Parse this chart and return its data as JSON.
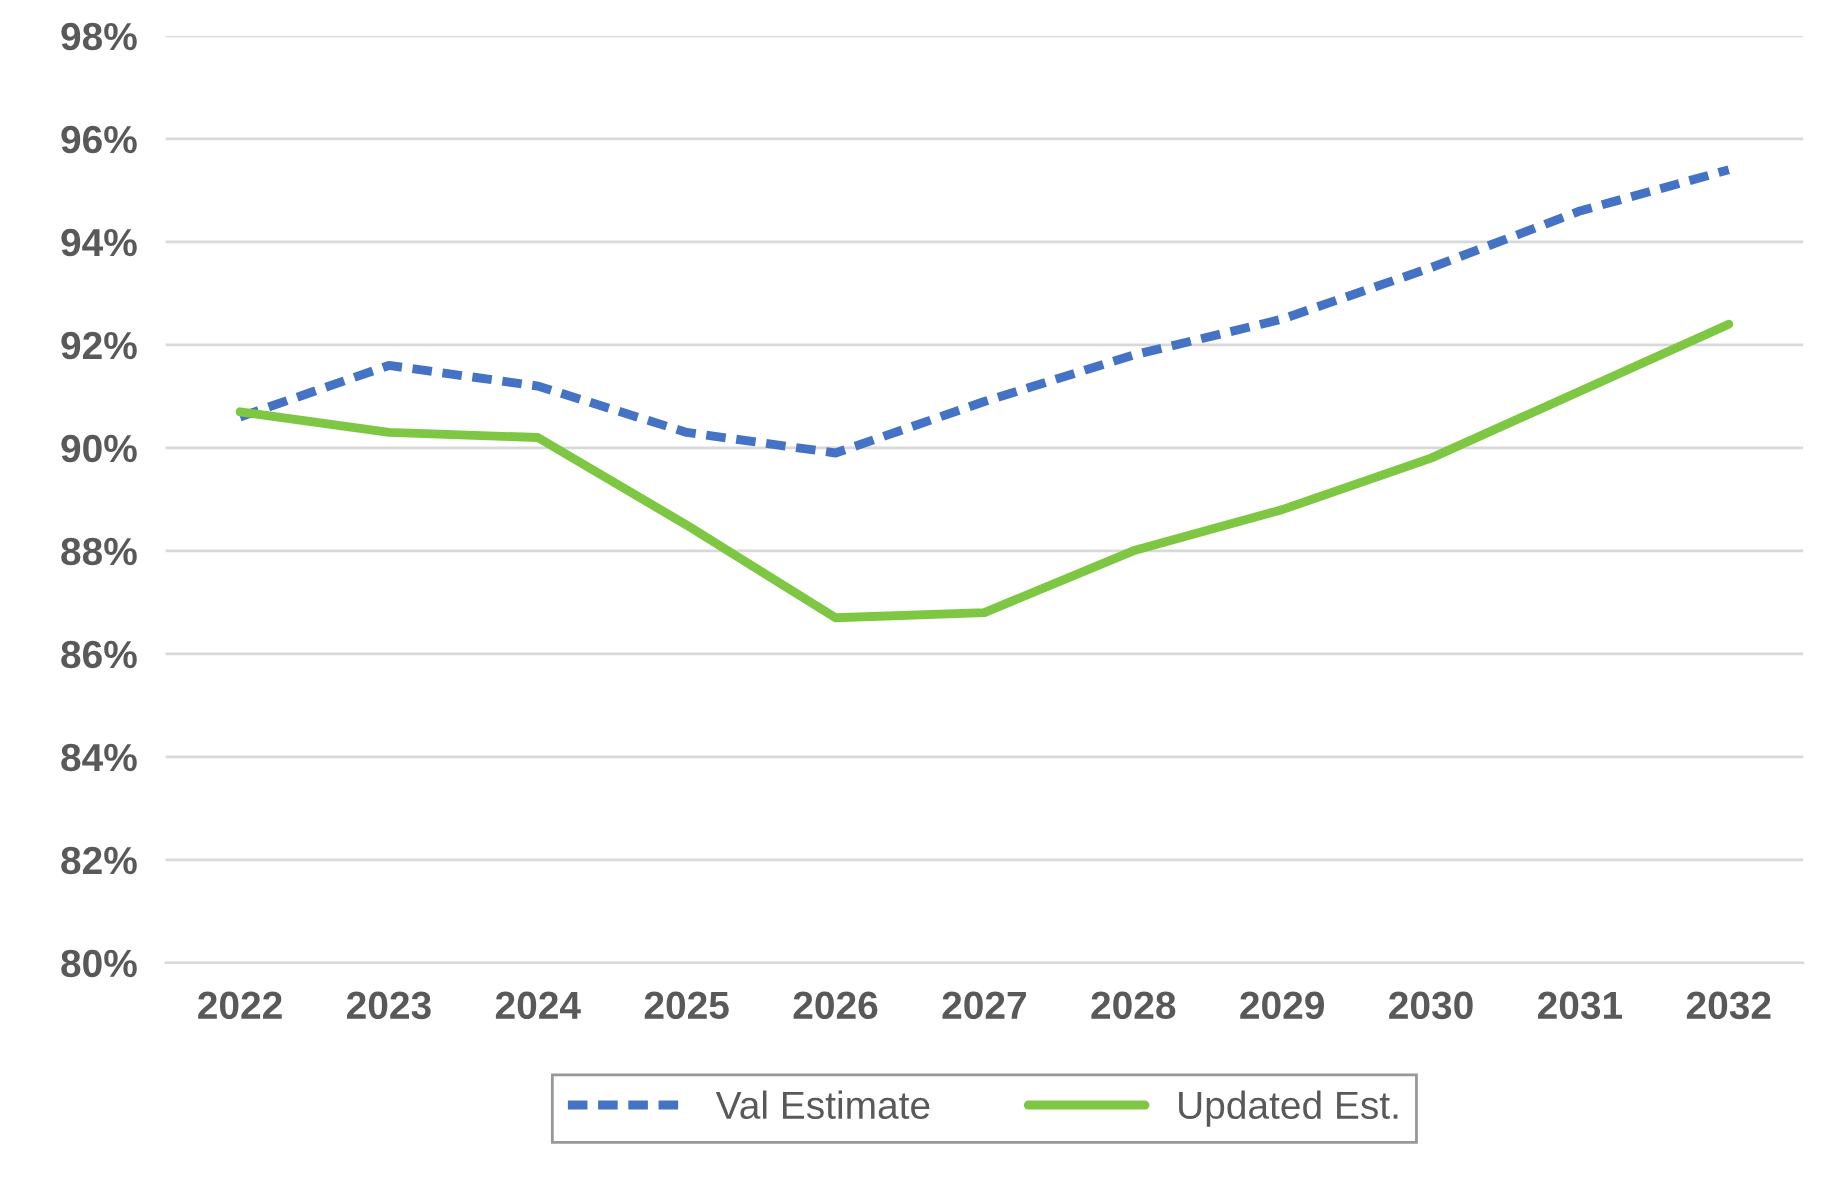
{
  "chart_data": {
    "type": "line",
    "categories": [
      "2022",
      "2023",
      "2024",
      "2025",
      "2026",
      "2027",
      "2028",
      "2029",
      "2030",
      "2031",
      "2032"
    ],
    "series": [
      {
        "name": "Val Estimate",
        "color": "#4472c4",
        "line_style": "dashed",
        "values": [
          90.6,
          91.6,
          91.2,
          90.3,
          89.9,
          90.9,
          91.8,
          92.5,
          93.5,
          94.6,
          95.4
        ]
      },
      {
        "name": "Updated Est.",
        "color": "#7dc742",
        "line_style": "solid",
        "values": [
          90.7,
          90.3,
          90.2,
          88.5,
          86.7,
          86.8,
          88.0,
          88.8,
          89.8,
          91.1,
          92.4
        ]
      }
    ],
    "ylim": [
      80,
      98
    ],
    "yticks": [
      {
        "value": 80,
        "label": "80%"
      },
      {
        "value": 82,
        "label": "82%"
      },
      {
        "value": 84,
        "label": "84%"
      },
      {
        "value": 86,
        "label": "86%"
      },
      {
        "value": 88,
        "label": "88%"
      },
      {
        "value": 90,
        "label": "90%"
      },
      {
        "value": 92,
        "label": "92%"
      },
      {
        "value": 94,
        "label": "94%"
      },
      {
        "value": 96,
        "label": "96%"
      },
      {
        "value": 98,
        "label": "98%"
      }
    ],
    "grid": "y",
    "legend": "bottom"
  }
}
